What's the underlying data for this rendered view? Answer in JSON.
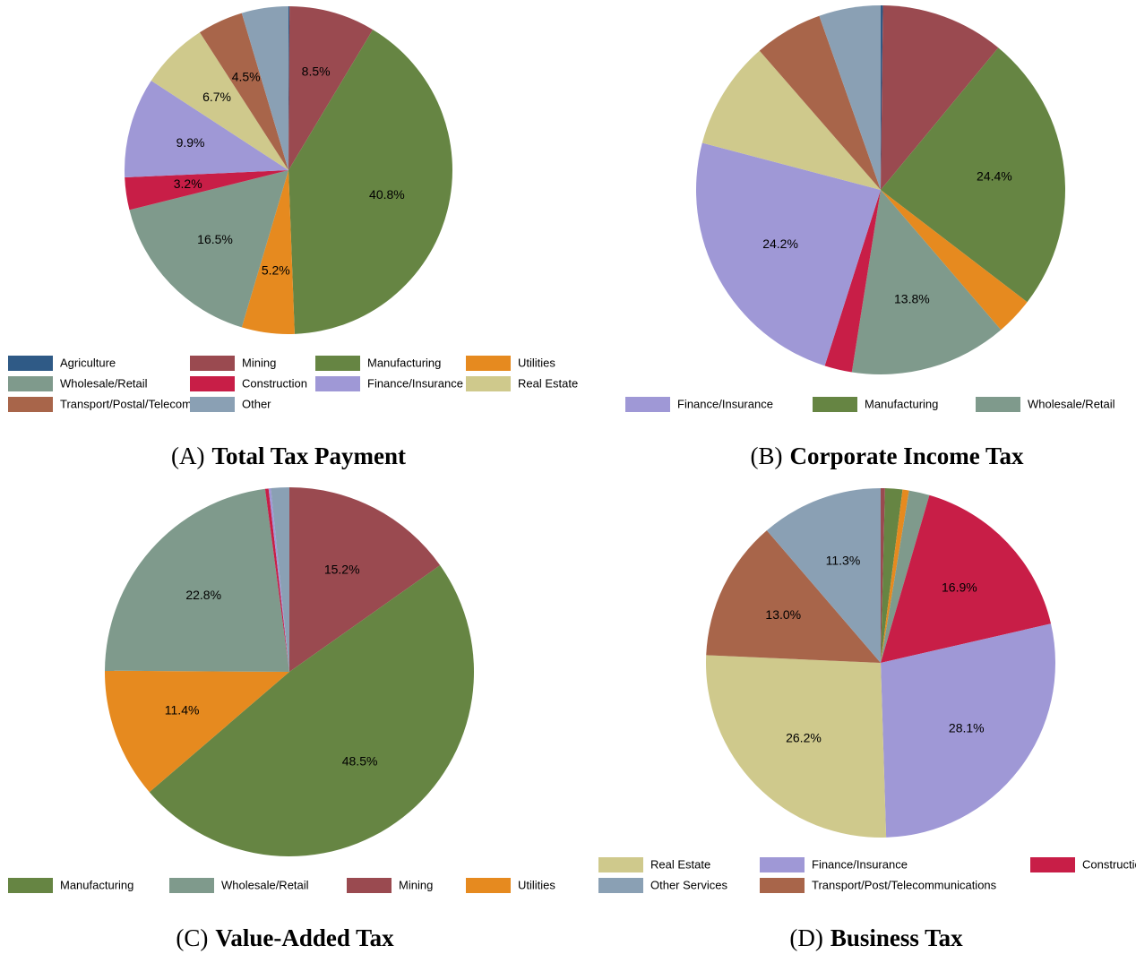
{
  "chart_data": [
    {
      "type": "pie",
      "label": "(A)",
      "title": "Total Tax Payment",
      "categories": [
        "Agriculture",
        "Mining",
        "Manufacturing",
        "Utilities",
        "Wholesale/Retail",
        "Construction",
        "Finance/Insurance",
        "Real Estate",
        "Transport/Postal/Telecom",
        "Other"
      ],
      "values": [
        0.1,
        8.5,
        40.8,
        5.2,
        16.5,
        3.2,
        9.9,
        6.7,
        4.5,
        4.6
      ],
      "value_labels": [
        null,
        "8.5%",
        "40.8%",
        "5.2%",
        "16.5%",
        "3.2%",
        "9.9%",
        "6.7%",
        "4.5%",
        null
      ],
      "colors": [
        "#2f5a86",
        "#9a4a50",
        "#668543",
        "#e68a1f",
        "#7f9a8c",
        "#c81e47",
        "#9f98d6",
        "#cfc98c",
        "#a8654a",
        "#8aa0b4"
      ],
      "legend": [
        "Agriculture",
        "Mining",
        "Manufacturing",
        "Utilities",
        "Wholesale/Retail",
        "Construction",
        "Finance/Insurance",
        "Real Estate",
        "Transport/Postal/Telecom",
        "Other"
      ]
    },
    {
      "type": "pie",
      "label": "(B)",
      "title": "Corporate Income Tax",
      "categories": [
        null,
        null,
        "Manufacturing",
        null,
        "Wholesale/Retail",
        null,
        "Finance/Insurance",
        null,
        null,
        null
      ],
      "values": [
        0.2,
        10.8,
        24.4,
        3.3,
        13.8,
        2.4,
        24.2,
        9.5,
        6.0,
        5.4
      ],
      "value_labels": [
        null,
        null,
        "24.4%",
        null,
        "13.8%",
        null,
        "24.2%",
        null,
        null,
        null
      ],
      "colors": [
        "#2f5a86",
        "#9a4a50",
        "#668543",
        "#e68a1f",
        "#7f9a8c",
        "#c81e47",
        "#9f98d6",
        "#cfc98c",
        "#a8654a",
        "#8aa0b4"
      ],
      "legend": [
        "Finance/Insurance",
        "Manufacturing",
        "Wholesale/Retail"
      ]
    },
    {
      "type": "pie",
      "label": "(C)",
      "title": "Value-Added Tax",
      "categories": [
        "Mining",
        "Manufacturing",
        "Utilities",
        "Wholesale/Retail",
        null,
        null,
        null
      ],
      "values": [
        15.2,
        48.5,
        11.4,
        22.8,
        0.3,
        0.2,
        1.6
      ],
      "value_labels": [
        "15.2%",
        "48.5%",
        "11.4%",
        "22.8%",
        null,
        null,
        null
      ],
      "colors": [
        "#9a4a50",
        "#668543",
        "#e68a1f",
        "#7f9a8c",
        "#c81e47",
        "#9f98d6",
        "#8aa0b4"
      ],
      "legend": [
        "Manufacturing",
        "Wholesale/Retail",
        "Mining",
        "Utilities"
      ]
    },
    {
      "type": "pie",
      "label": "(D)",
      "title": "Business Tax",
      "categories": [
        null,
        null,
        null,
        null,
        "Construction",
        "Finance/Insurance",
        "Real Estate",
        "Transport/Post/Telecommunications",
        "Other Services"
      ],
      "values": [
        0.4,
        1.6,
        0.6,
        1.9,
        16.9,
        28.1,
        26.2,
        13.0,
        11.3
      ],
      "value_labels": [
        null,
        null,
        null,
        null,
        "16.9%",
        "28.1%",
        "26.2%",
        "13.0%",
        "11.3%"
      ],
      "colors": [
        "#9a4a50",
        "#668543",
        "#e68a1f",
        "#7f9a8c",
        "#c81e47",
        "#9f98d6",
        "#cfc98c",
        "#a8654a",
        "#8aa0b4"
      ],
      "legend": [
        "Real Estate",
        "Finance/Insurance",
        "Construction",
        "Other Services",
        "Transport/Post/Telecommunications"
      ]
    }
  ]
}
